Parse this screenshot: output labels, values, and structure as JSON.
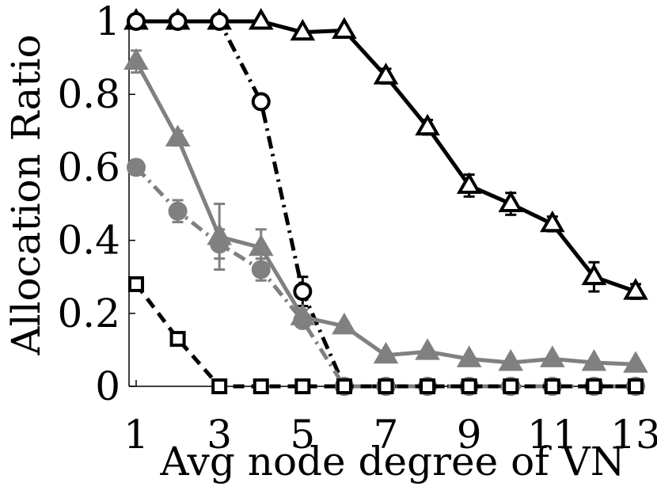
{
  "chart_data": {
    "type": "line",
    "title": "",
    "xlabel": "Avg node degree of VN",
    "ylabel": "Allocation Ratio",
    "xlim": [
      1,
      13
    ],
    "ylim": [
      0,
      1
    ],
    "x_ticks": [
      1,
      3,
      5,
      7,
      9,
      11,
      13
    ],
    "x_tick_labels": [
      "1",
      "3",
      "5",
      "7",
      "9",
      "11",
      "13"
    ],
    "y_ticks": [
      0,
      0.2,
      0.4,
      0.6,
      0.8,
      1
    ],
    "y_tick_labels": [
      "0",
      "0.2",
      "0.4",
      "0.6",
      "0.8",
      "1"
    ],
    "grid": false,
    "legend": "none",
    "series": [
      {
        "marker": "triangle-open",
        "line": "solid",
        "color": "#000000",
        "x": [
          1,
          2,
          3,
          4,
          5,
          6,
          7,
          8,
          9,
          10,
          11,
          12,
          13
        ],
        "values": [
          1.0,
          1.0,
          1.0,
          1.0,
          0.97,
          0.975,
          0.85,
          0.71,
          0.55,
          0.5,
          0.445,
          0.3,
          0.26
        ],
        "errors": [
          0,
          0,
          0,
          0,
          0.005,
          0.005,
          0.02,
          0.02,
          0.03,
          0.03,
          0.02,
          0.04,
          0.02
        ]
      },
      {
        "marker": "circle-open",
        "line": "dashdot",
        "color": "#000000",
        "x": [
          1,
          2,
          3,
          4,
          5,
          6,
          7,
          8,
          9,
          10,
          11,
          12,
          13
        ],
        "values": [
          1.0,
          1.0,
          1.0,
          0.78,
          0.26,
          0,
          0,
          0,
          0,
          0,
          0,
          0,
          0
        ],
        "errors": [
          0,
          0,
          0,
          0.01,
          0.04,
          0,
          0,
          0,
          0,
          0,
          0,
          0,
          0
        ]
      },
      {
        "marker": "triangle-filled",
        "line": "solid",
        "color": "#808080",
        "x": [
          1,
          2,
          3,
          4,
          5,
          6,
          7,
          8,
          9,
          10,
          11,
          12,
          13
        ],
        "values": [
          0.89,
          0.68,
          0.41,
          0.38,
          0.19,
          0.165,
          0.085,
          0.095,
          0.075,
          0.065,
          0.075,
          0.065,
          0.06
        ],
        "errors": [
          0.03,
          0.02,
          0.09,
          0.05,
          0.02,
          0.01,
          0.005,
          0.005,
          0.005,
          0.005,
          0.005,
          0.005,
          0.005
        ]
      },
      {
        "marker": "circle-filled",
        "line": "dashdot",
        "color": "#808080",
        "x": [
          1,
          2,
          3,
          4,
          5,
          6,
          7,
          8,
          9,
          10,
          11,
          12,
          13
        ],
        "values": [
          0.6,
          0.48,
          0.39,
          0.32,
          0.18,
          0,
          0,
          0,
          0,
          0,
          0,
          0,
          0
        ],
        "errors": [
          0.02,
          0.03,
          0.04,
          0.03,
          0.01,
          0,
          0,
          0,
          0,
          0,
          0,
          0,
          0
        ]
      },
      {
        "marker": "square-open",
        "line": "dashed",
        "color": "#000000",
        "x": [
          1,
          2,
          3,
          4,
          5,
          6,
          7,
          8,
          9,
          10,
          11,
          12,
          13
        ],
        "values": [
          0.28,
          0.13,
          0,
          0,
          0,
          0,
          0,
          0,
          0,
          0,
          0,
          0,
          0
        ],
        "errors": [
          0,
          0,
          0,
          0,
          0,
          0,
          0,
          0,
          0,
          0,
          0,
          0,
          0
        ]
      }
    ]
  }
}
